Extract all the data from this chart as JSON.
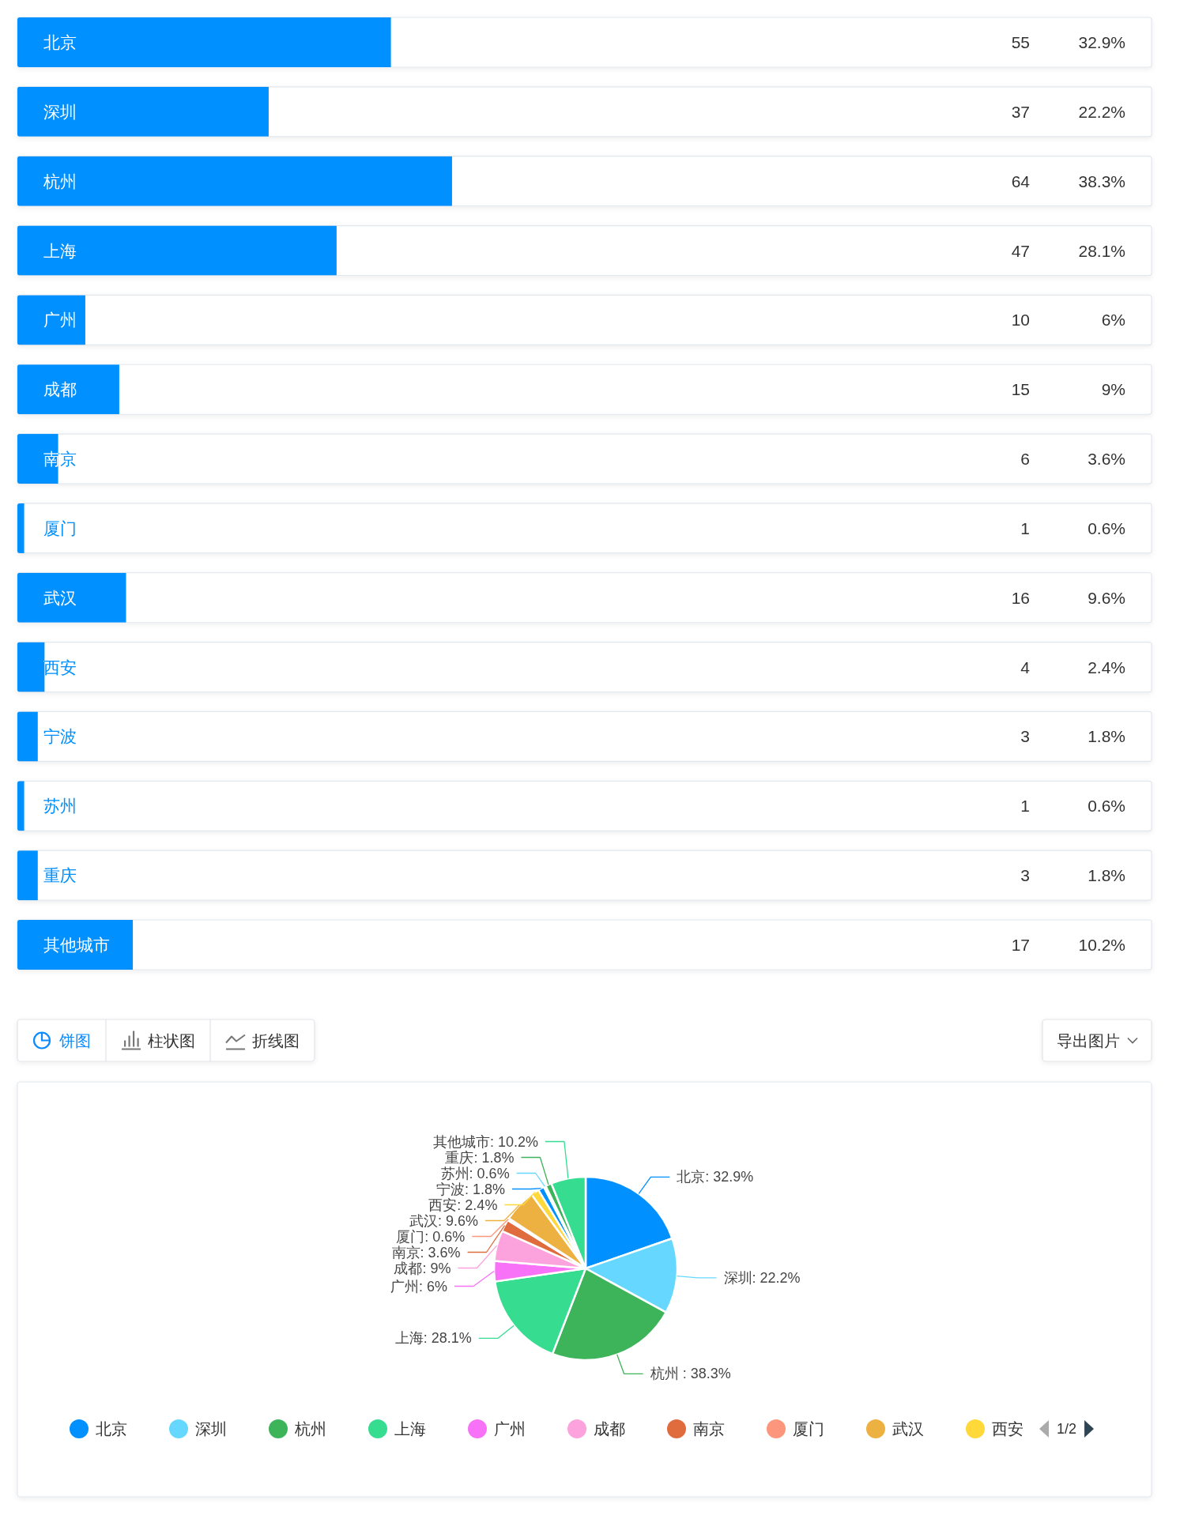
{
  "chart_data": [
    {
      "type": "bar",
      "orientation": "horizontal",
      "categories": [
        "北京",
        "深圳",
        "杭州",
        "上海",
        "广州",
        "成都",
        "南京",
        "厦门",
        "武汉",
        "西安",
        "宁波",
        "苏州",
        "重庆",
        "其他城市"
      ],
      "values": [
        55,
        37,
        64,
        47,
        10,
        15,
        6,
        1,
        16,
        4,
        3,
        1,
        3,
        17
      ],
      "color": "#0090ff",
      "xlim": [
        0,
        167
      ],
      "tick_labels": "y",
      "data_labels": true,
      "annotations": [
        "32.9%",
        "22.2%",
        "38.3%",
        "28.1%",
        "6%",
        "9%",
        "3.6%",
        "0.6%",
        "9.6%",
        "2.4%",
        "1.8%",
        "0.6%",
        "1.8%",
        "10.2%"
      ]
    },
    {
      "type": "pie",
      "categories": [
        "北京",
        "深圳",
        "杭州",
        "上海",
        "广州",
        "成都",
        "南京",
        "厦门",
        "武汉",
        "西安",
        "宁波",
        "苏州",
        "重庆",
        "其他城市"
      ],
      "values": [
        32.9,
        22.2,
        38.3,
        28.1,
        6,
        9,
        3.6,
        0.6,
        9.6,
        2.4,
        1.8,
        0.6,
        1.8,
        10.2
      ],
      "colors": [
        "#0090ff",
        "#66d8ff",
        "#3db35a",
        "#36dc90",
        "#f772f7",
        "#fca3de",
        "#e06b3d",
        "#fc967d",
        "#edb141",
        "#ffd83a",
        "#0090ff",
        "#66d8ff",
        "#3db35a",
        "#36dc90"
      ],
      "value_labels": [
        ": 32.9%",
        ": 22.2%",
        " : 38.3%",
        ": 28.1%",
        ": 6%",
        ": 9%",
        ": 3.6%",
        ": 0.6%",
        ": 9.6%",
        ": 2.4%",
        ": 1.8%",
        ": 0.6%",
        ": 1.8%",
        ": 10.2%"
      ],
      "legend": "bottom",
      "annotations": [
        "饼图",
        "柱状图",
        "折线图",
        "导出图片",
        "1/2"
      ]
    }
  ]
}
